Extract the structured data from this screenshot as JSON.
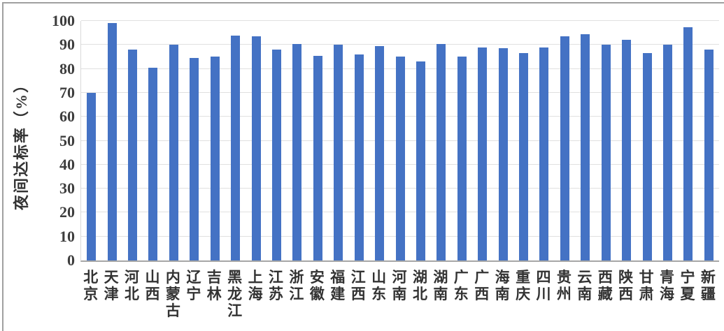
{
  "chart_data": {
    "type": "bar",
    "title": "",
    "xlabel": "",
    "ylabel": "夜间达标率（%）",
    "ylim": [
      0,
      100
    ],
    "yticks": [
      0,
      10,
      20,
      30,
      40,
      50,
      60,
      70,
      80,
      90,
      100
    ],
    "grid": true,
    "legend": "none",
    "bar_color": "#4472C4",
    "categories": [
      "北京",
      "天津",
      "河北",
      "山西",
      "内蒙古",
      "辽宁",
      "吉林",
      "黑龙江",
      "上海",
      "江苏",
      "浙江",
      "安徽",
      "福建",
      "江西",
      "山东",
      "河南",
      "湖北",
      "湖南",
      "广东",
      "广西",
      "海南",
      "重庆",
      "四川",
      "贵州",
      "云南",
      "西藏",
      "陕西",
      "甘肃",
      "青海",
      "宁夏",
      "新疆"
    ],
    "values": [
      70,
      99,
      88,
      80.5,
      90,
      84.5,
      85,
      94,
      93.5,
      88,
      90.5,
      85.5,
      90,
      86,
      89.5,
      85,
      83,
      90.5,
      85,
      89,
      88.5,
      86.5,
      89,
      93.5,
      94.5,
      90,
      92,
      86.5,
      90,
      97.5,
      88
    ]
  },
  "colors": {
    "bar": "#4472C4",
    "gridline": "#e0e0e0",
    "axis_line": "#a6a6a6",
    "frame_border": "#a0a0a0",
    "text": "#333333"
  }
}
